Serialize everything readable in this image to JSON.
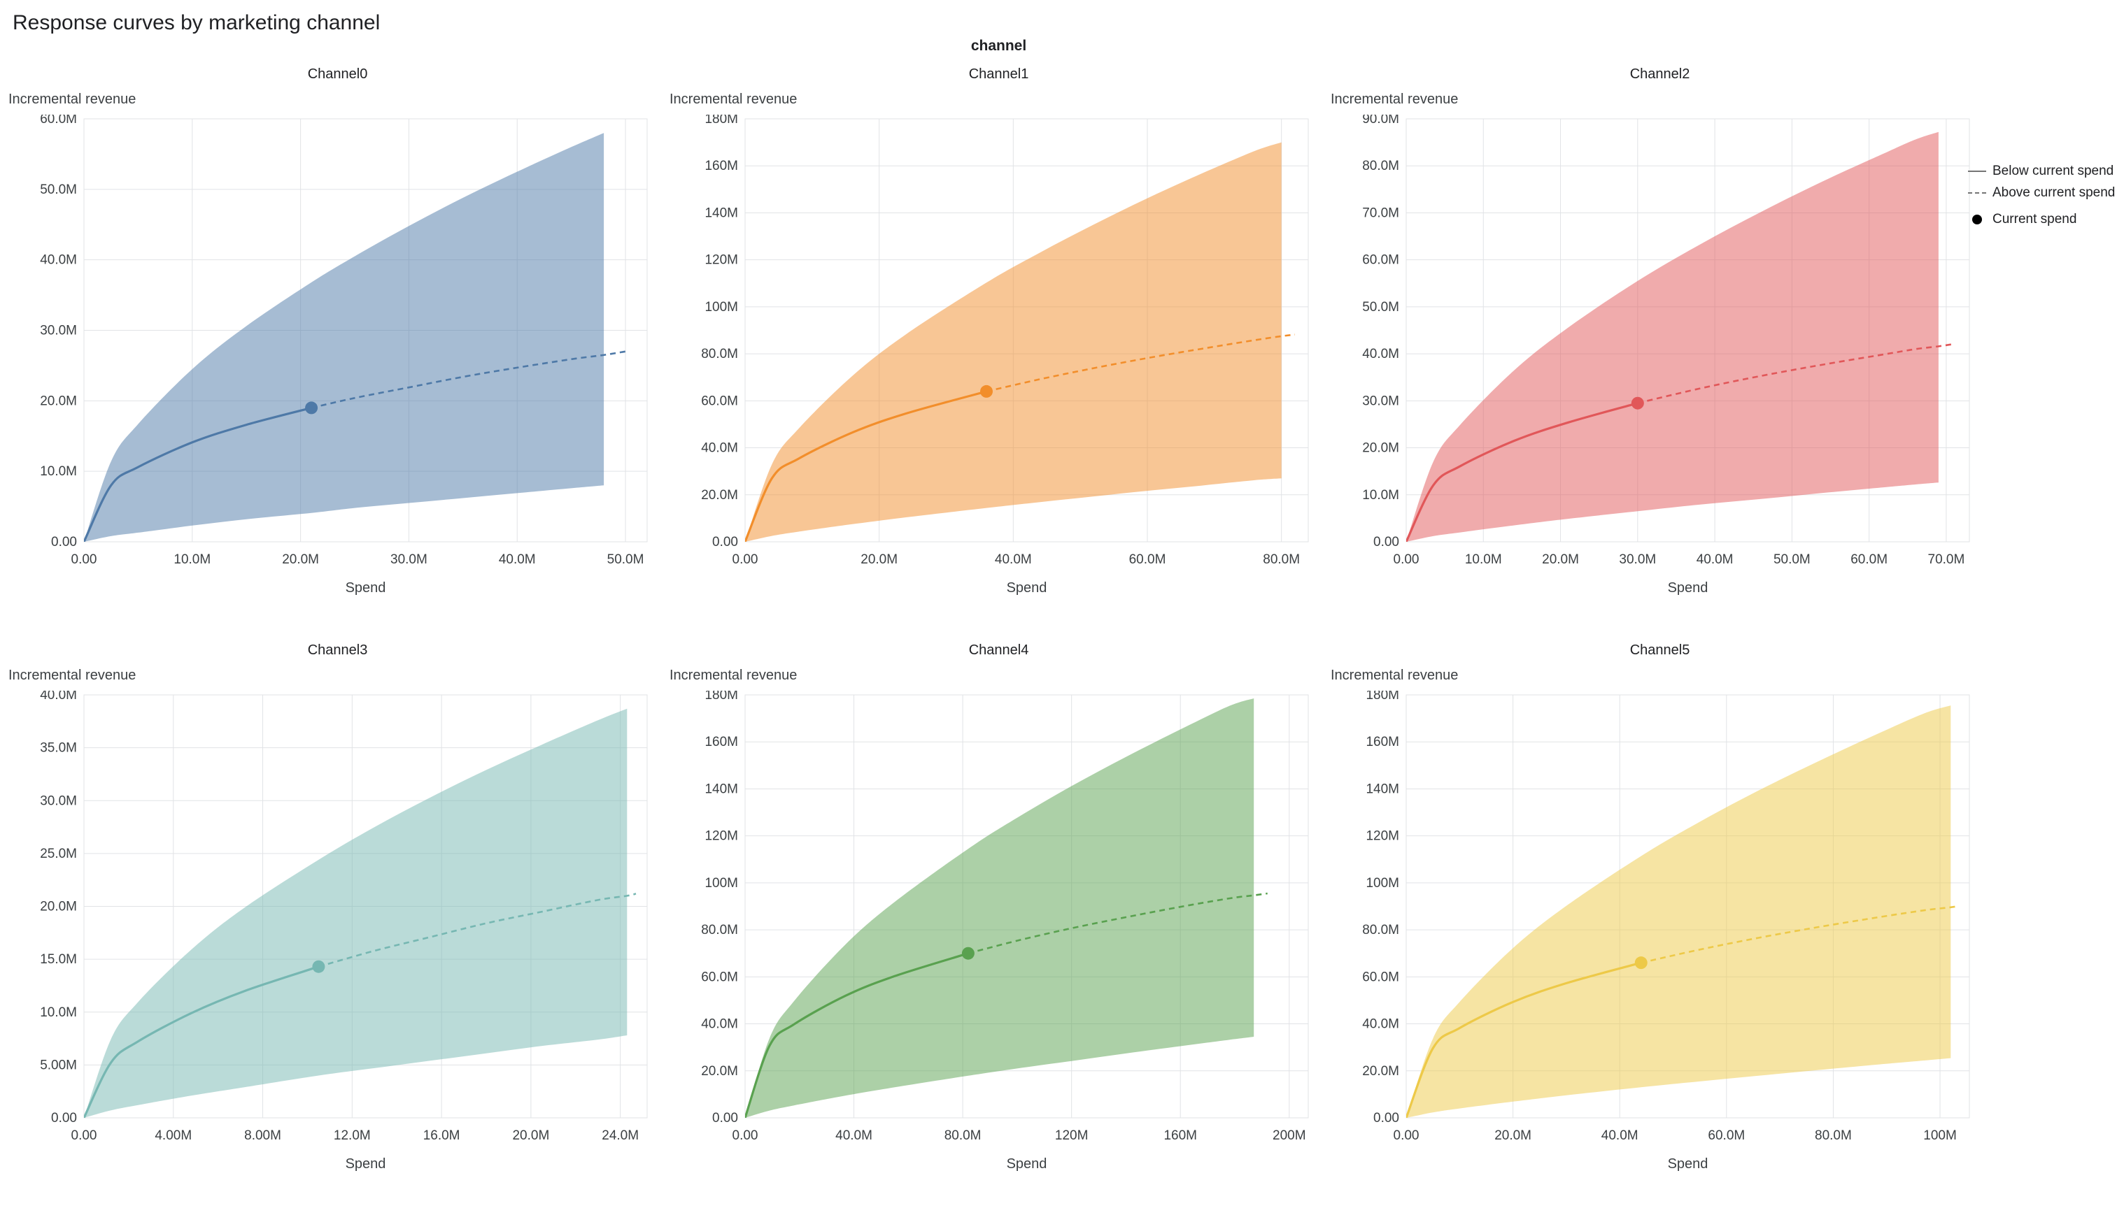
{
  "page": {
    "title": "Response curves by marketing channel",
    "facet_label": "channel"
  },
  "legend": {
    "items": [
      {
        "label": "Below current spend",
        "symbol": "solid-line",
        "color": "#757575"
      },
      {
        "label": "Above current spend",
        "symbol": "dashed-line",
        "color": "#757575"
      },
      {
        "label": "Current spend",
        "symbol": "dot",
        "color": "#000000"
      }
    ]
  },
  "chart_data": {
    "type": "line",
    "title": "Response curves by marketing channel",
    "facet_field": "channel",
    "xlabel": "Spend",
    "ylabel": "Incremental revenue",
    "unit": "M",
    "grid": true,
    "legend_position": "top-right",
    "charts": [
      {
        "title": "Channel0",
        "color": "#4e79a7",
        "x_max": 52,
        "y_max": 60,
        "x_ticks": [
          0,
          10,
          20,
          30,
          40,
          50
        ],
        "x_tick_labels": [
          "0.00",
          "10.0M",
          "20.0M",
          "30.0M",
          "40.0M",
          "50.0M"
        ],
        "y_ticks": [
          0,
          10,
          20,
          30,
          40,
          50,
          60
        ],
        "y_tick_labels": [
          "0.00",
          "10.0M",
          "20.0M",
          "30.0M",
          "40.0M",
          "50.0M",
          "60.0M"
        ],
        "current_spend": {
          "x": 21,
          "y": 19
        },
        "band": {
          "x": [
            0,
            2.5,
            5,
            10,
            15,
            21,
            25,
            30,
            35,
            40,
            45,
            48
          ],
          "lower": [
            0,
            0.8,
            1.3,
            2.3,
            3.2,
            4.1,
            4.8,
            5.5,
            6.2,
            6.9,
            7.6,
            8.0
          ],
          "upper": [
            0,
            11.4,
            16.7,
            24.5,
            30.6,
            36.8,
            40.5,
            44.8,
            48.8,
            52.5,
            56.0,
            58.0
          ]
        },
        "mean": {
          "x": [
            0,
            2.5,
            5,
            10,
            15,
            21,
            25,
            30,
            35,
            40,
            45,
            48,
            50
          ],
          "y": [
            0,
            8.0,
            10.6,
            14.1,
            16.6,
            19.0,
            20.4,
            21.9,
            23.4,
            24.7,
            25.9,
            26.5,
            27.0
          ]
        }
      },
      {
        "title": "Channel1",
        "color": "#f28e2b",
        "x_max": 84,
        "y_max": 180,
        "x_ticks": [
          0,
          20,
          40,
          60,
          80
        ],
        "x_tick_labels": [
          "0.00",
          "20.0M",
          "40.0M",
          "60.0M",
          "80.0M"
        ],
        "y_ticks": [
          0,
          20,
          40,
          60,
          80,
          100,
          120,
          140,
          160,
          180
        ],
        "y_tick_labels": [
          "0.00",
          "20.0M",
          "40.0M",
          "60.0M",
          "80.0M",
          "100M",
          "120M",
          "140M",
          "160M",
          "180M"
        ],
        "current_spend": {
          "x": 36,
          "y": 64
        },
        "band": {
          "x": [
            0,
            4,
            8,
            16,
            24,
            36,
            44,
            52,
            60,
            68,
            76,
            80
          ],
          "lower": [
            0,
            2.5,
            4.3,
            7.5,
            10.4,
            14.4,
            16.9,
            19.3,
            21.7,
            23.9,
            26.2,
            27.0
          ],
          "upper": [
            0,
            32.9,
            48.2,
            70.6,
            88.3,
            110.3,
            123.1,
            135.0,
            146.2,
            156.6,
            166.3,
            170.0
          ]
        },
        "mean": {
          "x": [
            0,
            4,
            8,
            16,
            24,
            36,
            44,
            52,
            60,
            68,
            76,
            80,
            82
          ],
          "y": [
            0,
            27.0,
            35.4,
            46.5,
            54.6,
            64.0,
            69.2,
            73.9,
            78.2,
            82.1,
            85.8,
            87.5,
            88.2
          ]
        }
      },
      {
        "title": "Channel2",
        "color": "#e15759",
        "x_max": 73,
        "y_max": 90,
        "x_ticks": [
          0,
          10,
          20,
          30,
          40,
          50,
          60,
          70
        ],
        "x_tick_labels": [
          "0.00",
          "10.0M",
          "20.0M",
          "30.0M",
          "40.0M",
          "50.0M",
          "60.0M",
          "70.0M"
        ],
        "y_ticks": [
          0,
          10,
          20,
          30,
          40,
          50,
          60,
          70,
          80,
          90
        ],
        "y_tick_labels": [
          "0.00",
          "10.0M",
          "20.0M",
          "30.0M",
          "40.0M",
          "50.0M",
          "60.0M",
          "70.0M",
          "80.0M",
          "90.0M"
        ],
        "current_spend": {
          "x": 30,
          "y": 29.5
        },
        "band": {
          "x": [
            0,
            3.5,
            7,
            14,
            21,
            30,
            38,
            46,
            54,
            62,
            66,
            69
          ],
          "lower": [
            0,
            1.2,
            2.0,
            3.5,
            4.9,
            6.5,
            7.9,
            9.1,
            10.4,
            11.6,
            12.2,
            12.6
          ],
          "upper": [
            0,
            17.0,
            24.9,
            36.5,
            45.6,
            55.5,
            63.2,
            70.2,
            76.7,
            82.7,
            85.6,
            87.2
          ]
        },
        "mean": {
          "x": [
            0,
            3.5,
            7,
            14,
            21,
            30,
            38,
            46,
            54,
            62,
            66,
            69,
            71
          ],
          "y": [
            0,
            12.0,
            16.1,
            21.5,
            25.4,
            29.5,
            32.6,
            35.3,
            37.7,
            39.9,
            41.0,
            41.6,
            42.1
          ]
        }
      },
      {
        "title": "Channel3",
        "color": "#76b7b2",
        "x_max": 25.2,
        "y_max": 40,
        "x_ticks": [
          0,
          4,
          8,
          12,
          16,
          20,
          24
        ],
        "x_tick_labels": [
          "0.00",
          "4.00M",
          "8.00M",
          "12.0M",
          "16.0M",
          "20.0M",
          "24.0M"
        ],
        "y_ticks": [
          0,
          5,
          10,
          15,
          20,
          25,
          30,
          35,
          40
        ],
        "y_tick_labels": [
          "0.00",
          "5.00M",
          "10.0M",
          "15.0M",
          "20.0M",
          "25.0M",
          "30.0M",
          "35.0M",
          "40.0M"
        ],
        "current_spend": {
          "x": 10.5,
          "y": 14.3
        },
        "band": {
          "x": [
            0,
            1.2,
            2.4,
            4.8,
            7.2,
            10.5,
            13,
            15.5,
            18,
            20.5,
            23,
            24.3
          ],
          "lower": [
            0,
            0.7,
            1.2,
            2.1,
            2.9,
            4.0,
            4.7,
            5.4,
            6.1,
            6.8,
            7.4,
            7.8
          ],
          "upper": [
            0,
            7.4,
            10.9,
            15.9,
            19.9,
            24.4,
            27.5,
            30.3,
            32.9,
            35.3,
            37.6,
            38.7
          ]
        },
        "mean": {
          "x": [
            0,
            1.2,
            2.4,
            4.8,
            7.2,
            10.5,
            13,
            15.5,
            18,
            20.5,
            23,
            24.3,
            24.7
          ],
          "y": [
            0,
            5.2,
            7.2,
            9.9,
            12.0,
            14.3,
            15.8,
            17.1,
            18.4,
            19.5,
            20.6,
            21.0,
            21.2
          ]
        }
      },
      {
        "title": "Channel4",
        "color": "#59a14f",
        "x_max": 207,
        "y_max": 180,
        "x_ticks": [
          0,
          40,
          80,
          120,
          160,
          200
        ],
        "x_tick_labels": [
          "0.00",
          "40.0M",
          "80.0M",
          "120M",
          "160M",
          "200M"
        ],
        "y_ticks": [
          0,
          20,
          40,
          60,
          80,
          100,
          120,
          140,
          160,
          180
        ],
        "y_tick_labels": [
          "0.00",
          "20.0M",
          "40.0M",
          "60.0M",
          "80.0M",
          "100M",
          "120M",
          "140M",
          "160M",
          "180M"
        ],
        "current_spend": {
          "x": 82,
          "y": 70
        },
        "band": {
          "x": [
            0,
            9,
            18,
            37,
            55,
            82,
            100,
            120,
            140,
            160,
            178,
            187
          ],
          "lower": [
            0,
            3.1,
            5.3,
            9.5,
            13.0,
            17.9,
            21.0,
            24.2,
            27.4,
            30.5,
            33.2,
            34.5
          ],
          "upper": [
            0,
            33.9,
            49.7,
            73.9,
            91.9,
            114.5,
            127.7,
            141.2,
            153.6,
            165.3,
            175.3,
            178.5
          ]
        },
        "mean": {
          "x": [
            0,
            9,
            18,
            37,
            55,
            82,
            100,
            120,
            140,
            160,
            178,
            187,
            192
          ],
          "y": [
            0,
            30.7,
            39.8,
            52.0,
            60.3,
            70.0,
            75.4,
            80.7,
            85.4,
            89.8,
            93.4,
            94.7,
            95.5
          ]
        }
      },
      {
        "title": "Channel5",
        "color": "#edc948",
        "x_max": 105.5,
        "y_max": 180,
        "x_ticks": [
          0,
          20,
          40,
          60,
          80,
          100
        ],
        "x_tick_labels": [
          "0.00",
          "20.0M",
          "40.0M",
          "60.0M",
          "80.0M",
          "100M"
        ],
        "y_ticks": [
          0,
          20,
          40,
          60,
          80,
          100,
          120,
          140,
          160,
          180
        ],
        "y_tick_labels": [
          "0.00",
          "20.0M",
          "40.0M",
          "60.0M",
          "80.0M",
          "100M",
          "120M",
          "140M",
          "160M",
          "180M"
        ],
        "current_spend": {
          "x": 44,
          "y": 66
        },
        "band": {
          "x": [
            0,
            5,
            10,
            20,
            30,
            44,
            55,
            66,
            77,
            88,
            97,
            102
          ],
          "lower": [
            0,
            2.3,
            4.0,
            6.9,
            9.6,
            13.0,
            15.5,
            17.9,
            20.3,
            22.6,
            24.4,
            25.4
          ],
          "upper": [
            0,
            33.7,
            49.3,
            72.2,
            90.2,
            111.4,
            126.0,
            139.3,
            151.5,
            163.1,
            172.1,
            175.5
          ]
        },
        "mean": {
          "x": [
            0,
            5,
            10,
            20,
            30,
            44,
            55,
            66,
            77,
            88,
            97,
            102,
            103.5
          ],
          "y": [
            0,
            29.6,
            38.2,
            49.3,
            57.3,
            66.0,
            71.6,
            76.6,
            81.1,
            85.2,
            88.3,
            89.6,
            90.2
          ]
        }
      }
    ]
  }
}
